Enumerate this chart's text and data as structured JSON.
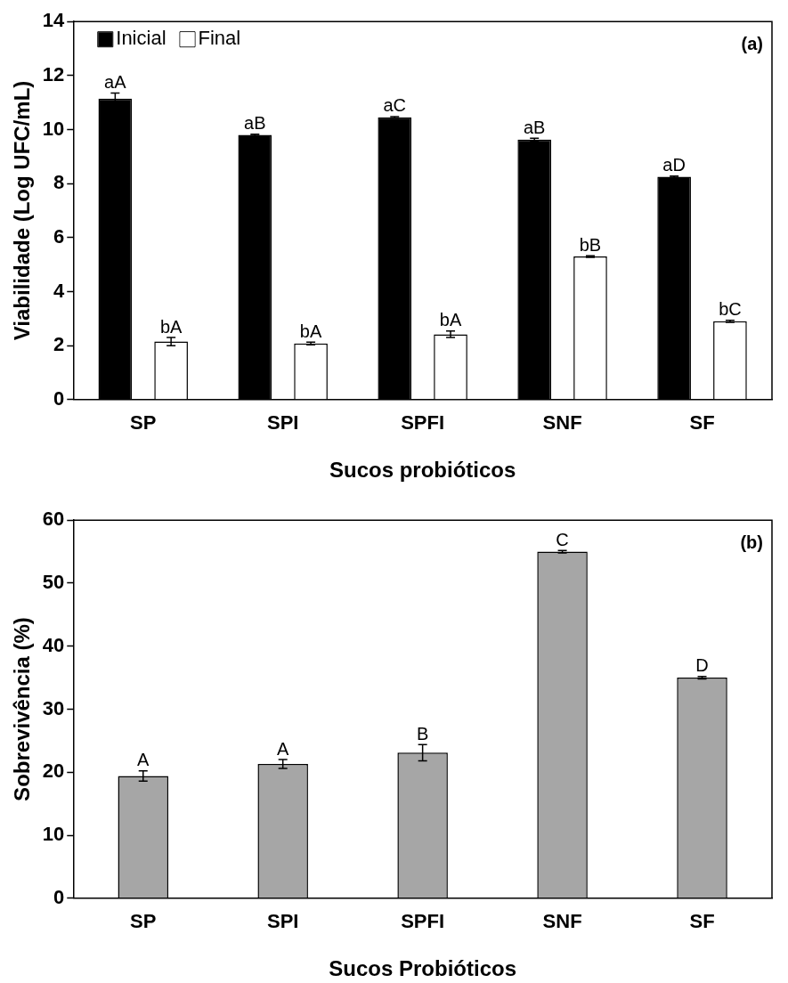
{
  "chart_data": [
    {
      "type": "bar",
      "xlabel": "Sucos probióticos",
      "ylabel": "Viabilidade (Log UFC/mL)",
      "categories": [
        "SP",
        "SPI",
        "SPFI",
        "SNF",
        "SF"
      ],
      "ylim": [
        0,
        14
      ],
      "yticks": [
        0,
        2,
        4,
        6,
        8,
        10,
        12,
        14
      ],
      "grid": false,
      "legend": "top left",
      "annotations": [
        "(a)"
      ],
      "series": [
        {
          "name": "Inicial",
          "color": "#000000",
          "values": [
            11.15,
            9.8,
            10.45,
            9.63,
            8.25
          ],
          "errors": [
            0.2,
            0.03,
            0.03,
            0.05,
            0.03
          ],
          "value_labels": [
            "aA",
            "aB",
            "aC",
            "aB",
            "aD"
          ]
        },
        {
          "name": "Final",
          "color": "#ffffff",
          "values": [
            2.15,
            2.08,
            2.42,
            5.3,
            2.9
          ],
          "errors": [
            0.15,
            0.05,
            0.12,
            0.03,
            0.04
          ],
          "value_labels": [
            "bA",
            "bA",
            "bA",
            "bB",
            "bC"
          ]
        }
      ]
    },
    {
      "type": "bar",
      "xlabel": "Sucos Probióticos",
      "ylabel": "Sobrevivência (%)",
      "categories": [
        "SP",
        "SPI",
        "SPFI",
        "SNF",
        "SF"
      ],
      "ylim": [
        0,
        60
      ],
      "yticks": [
        0,
        10,
        20,
        30,
        40,
        50,
        60
      ],
      "grid": false,
      "legend": false,
      "annotations": [
        "(b)"
      ],
      "series": [
        {
          "color": "#a6a6a6",
          "values": [
            19.4,
            21.3,
            23.1,
            55,
            35
          ],
          "errors": [
            0.8,
            0.7,
            1.3,
            0.2,
            0.2
          ],
          "value_labels": [
            "A",
            "A",
            "B",
            "C",
            "D"
          ]
        }
      ]
    }
  ]
}
